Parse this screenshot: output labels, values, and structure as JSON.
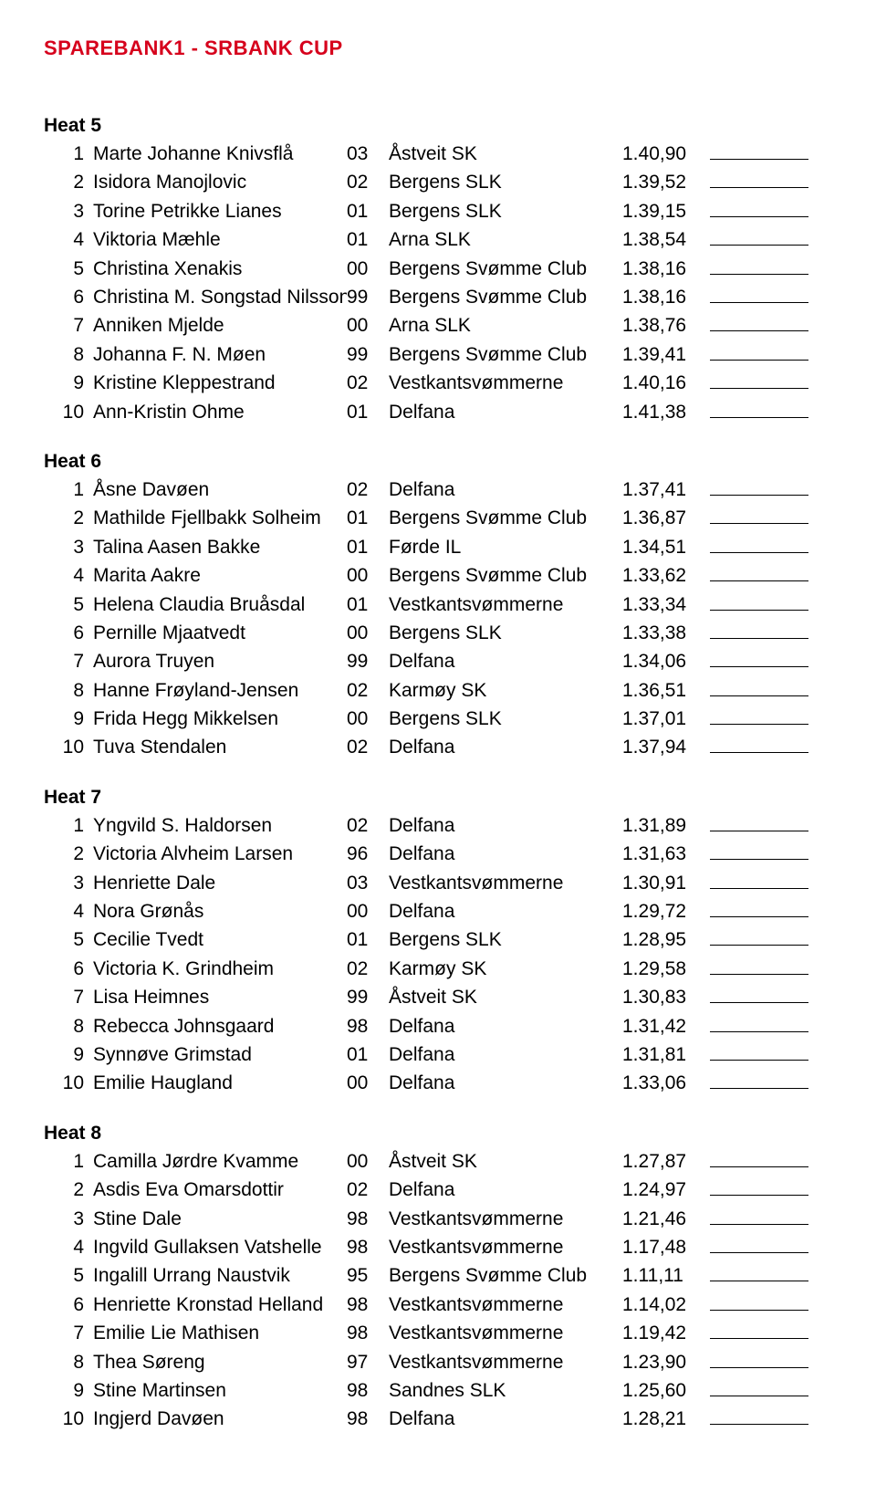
{
  "title": "SPAREBANK1 - SRBANK CUP",
  "heats": [
    {
      "label": "Heat 5",
      "rows": [
        {
          "lane": "1",
          "name": "Marte Johanne Knivsflå",
          "yr": "03",
          "club": "Åstveit SK",
          "time": "1.40,90"
        },
        {
          "lane": "2",
          "name": "Isidora Manojlovic",
          "yr": "02",
          "club": "Bergens SLK",
          "time": "1.39,52"
        },
        {
          "lane": "3",
          "name": "Torine Petrikke Lianes",
          "yr": "01",
          "club": "Bergens SLK",
          "time": "1.39,15"
        },
        {
          "lane": "4",
          "name": "Viktoria Mæhle",
          "yr": "01",
          "club": "Arna SLK",
          "time": "1.38,54"
        },
        {
          "lane": "5",
          "name": "Christina Xenakis",
          "yr": "00",
          "club": "Bergens Svømme Club",
          "time": "1.38,16"
        },
        {
          "lane": "6",
          "name": "Christina M. Songstad Nilsson",
          "yr": "99",
          "club": "Bergens Svømme Club",
          "time": "1.38,16"
        },
        {
          "lane": "7",
          "name": "Anniken Mjelde",
          "yr": "00",
          "club": "Arna SLK",
          "time": "1.38,76"
        },
        {
          "lane": "8",
          "name": "Johanna F. N. Møen",
          "yr": "99",
          "club": "Bergens Svømme Club",
          "time": "1.39,41"
        },
        {
          "lane": "9",
          "name": "Kristine Kleppestrand",
          "yr": "02",
          "club": "Vestkantsvømmerne",
          "time": "1.40,16"
        },
        {
          "lane": "10",
          "name": "Ann-Kristin Ohme",
          "yr": "01",
          "club": "Delfana",
          "time": "1.41,38"
        }
      ]
    },
    {
      "label": "Heat 6",
      "rows": [
        {
          "lane": "1",
          "name": "Åsne Davøen",
          "yr": "02",
          "club": "Delfana",
          "time": "1.37,41"
        },
        {
          "lane": "2",
          "name": "Mathilde Fjellbakk Solheim",
          "yr": "01",
          "club": "Bergens Svømme Club",
          "time": "1.36,87"
        },
        {
          "lane": "3",
          "name": "Talina Aasen Bakke",
          "yr": "01",
          "club": "Førde IL",
          "time": "1.34,51"
        },
        {
          "lane": "4",
          "name": "Marita Aakre",
          "yr": "00",
          "club": "Bergens Svømme Club",
          "time": "1.33,62"
        },
        {
          "lane": "5",
          "name": "Helena Claudia Bruåsdal",
          "yr": "01",
          "club": "Vestkantsvømmerne",
          "time": "1.33,34"
        },
        {
          "lane": "6",
          "name": "Pernille Mjaatvedt",
          "yr": "00",
          "club": "Bergens SLK",
          "time": "1.33,38"
        },
        {
          "lane": "7",
          "name": "Aurora Truyen",
          "yr": "99",
          "club": "Delfana",
          "time": "1.34,06"
        },
        {
          "lane": "8",
          "name": "Hanne Frøyland-Jensen",
          "yr": "02",
          "club": "Karmøy SK",
          "time": "1.36,51"
        },
        {
          "lane": "9",
          "name": "Frida Hegg Mikkelsen",
          "yr": "00",
          "club": "Bergens SLK",
          "time": "1.37,01"
        },
        {
          "lane": "10",
          "name": "Tuva Stendalen",
          "yr": "02",
          "club": "Delfana",
          "time": "1.37,94"
        }
      ]
    },
    {
      "label": "Heat 7",
      "rows": [
        {
          "lane": "1",
          "name": "Yngvild S. Haldorsen",
          "yr": "02",
          "club": "Delfana",
          "time": "1.31,89"
        },
        {
          "lane": "2",
          "name": "Victoria Alvheim Larsen",
          "yr": "96",
          "club": "Delfana",
          "time": "1.31,63"
        },
        {
          "lane": "3",
          "name": "Henriette Dale",
          "yr": "03",
          "club": "Vestkantsvømmerne",
          "time": "1.30,91"
        },
        {
          "lane": "4",
          "name": "Nora Grønås",
          "yr": "00",
          "club": "Delfana",
          "time": "1.29,72"
        },
        {
          "lane": "5",
          "name": "Cecilie Tvedt",
          "yr": "01",
          "club": "Bergens SLK",
          "time": "1.28,95"
        },
        {
          "lane": "6",
          "name": "Victoria K. Grindheim",
          "yr": "02",
          "club": "Karmøy SK",
          "time": "1.29,58"
        },
        {
          "lane": "7",
          "name": "Lisa Heimnes",
          "yr": "99",
          "club": "Åstveit SK",
          "time": "1.30,83"
        },
        {
          "lane": "8",
          "name": "Rebecca Johnsgaard",
          "yr": "98",
          "club": "Delfana",
          "time": "1.31,42"
        },
        {
          "lane": "9",
          "name": "Synnøve Grimstad",
          "yr": "01",
          "club": "Delfana",
          "time": "1.31,81"
        },
        {
          "lane": "10",
          "name": "Emilie Haugland",
          "yr": "00",
          "club": "Delfana",
          "time": "1.33,06"
        }
      ]
    },
    {
      "label": "Heat 8",
      "rows": [
        {
          "lane": "1",
          "name": "Camilla Jørdre Kvamme",
          "yr": "00",
          "club": "Åstveit SK",
          "time": "1.27,87"
        },
        {
          "lane": "2",
          "name": "Asdis Eva Omarsdottir",
          "yr": "02",
          "club": "Delfana",
          "time": "1.24,97"
        },
        {
          "lane": "3",
          "name": "Stine Dale",
          "yr": "98",
          "club": "Vestkantsvømmerne",
          "time": "1.21,46"
        },
        {
          "lane": "4",
          "name": "Ingvild Gullaksen Vatshelle",
          "yr": "98",
          "club": "Vestkantsvømmerne",
          "time": "1.17,48"
        },
        {
          "lane": "5",
          "name": "Ingalill Urrang Naustvik",
          "yr": "95",
          "club": "Bergens Svømme Club",
          "time": "1.11,11"
        },
        {
          "lane": "6",
          "name": "Henriette Kronstad Helland",
          "yr": "98",
          "club": "Vestkantsvømmerne",
          "time": "1.14,02"
        },
        {
          "lane": "7",
          "name": "Emilie Lie Mathisen",
          "yr": "98",
          "club": "Vestkantsvømmerne",
          "time": "1.19,42"
        },
        {
          "lane": "8",
          "name": "Thea Søreng",
          "yr": "97",
          "club": "Vestkantsvømmerne",
          "time": "1.23,90"
        },
        {
          "lane": "9",
          "name": "Stine Martinsen",
          "yr": "98",
          "club": "Sandnes SLK",
          "time": "1.25,60"
        },
        {
          "lane": "10",
          "name": "Ingjerd Davøen",
          "yr": "98",
          "club": "Delfana",
          "time": "1.28,21"
        }
      ]
    }
  ]
}
